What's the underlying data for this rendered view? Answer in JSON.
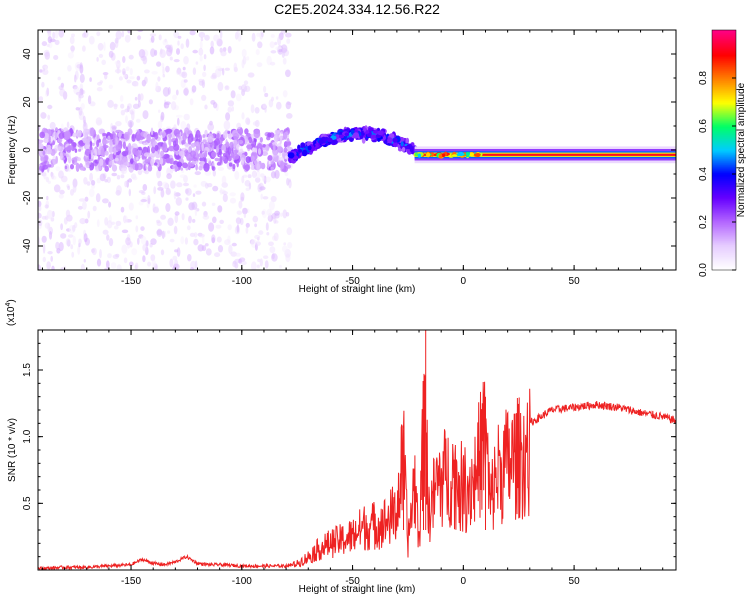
{
  "figure": {
    "title": "C2E5.2024.334.12.56.R22"
  },
  "chart_data": [
    {
      "type": "heatmap",
      "xlabel": "Height of straight line (km)",
      "ylabel": "Frequency (Hz)",
      "xlim": [
        -192,
        96
      ],
      "ylim": [
        -50,
        50
      ],
      "xticks": [
        -150,
        -100,
        -50,
        0,
        50
      ],
      "yticks": [
        -40,
        -20,
        0,
        20,
        40
      ],
      "grid": false,
      "colorbar": {
        "label": "Normalized spectral amplitude",
        "range": [
          0,
          1
        ],
        "ticks": [
          0.0,
          0.2,
          0.4,
          0.6,
          0.8
        ],
        "colormap": [
          "#ffffff",
          "#e6ccff",
          "#b366ff",
          "#6600ff",
          "#0000ff",
          "#00ccff",
          "#00ff66",
          "#ffff00",
          "#ff8000",
          "#ff0000",
          "#ff0080"
        ]
      },
      "regions": [
        {
          "x": [
            -192,
            -78
          ],
          "pattern": "broadband scattered speckle",
          "core_freq_hz": [
            -8,
            8
          ],
          "core_amplitude": 0.15,
          "background_amplitude": 0.05
        },
        {
          "x": [
            -78,
            -22
          ],
          "pattern": "concentrated band",
          "center_freq_hz": [
            -3,
            7
          ],
          "peak_amplitude": 0.45
        },
        {
          "x": [
            -22,
            96
          ],
          "pattern": "narrow tone",
          "center_freq_hz": -2,
          "peak_amplitude": 1.0
        }
      ]
    },
    {
      "type": "line",
      "xlabel": "Height of straight line (km)",
      "ylabel": "SNR (10 * v/v)",
      "y_multiplier": "(x10^4)",
      "xlim": [
        -192,
        96
      ],
      "ylim": [
        0,
        1.8
      ],
      "xticks": [
        -150,
        -100,
        -50,
        0,
        50
      ],
      "yticks": [
        0.5,
        1.0,
        1.5
      ],
      "ytick_labels": [
        "0.5",
        "1.0",
        "1.5"
      ],
      "grid": false,
      "series": [
        {
          "color": "#ee2222",
          "x": [
            -192,
            -180,
            -170,
            -160,
            -150,
            -145,
            -140,
            -135,
            -130,
            -125,
            -120,
            -115,
            -110,
            -100,
            -90,
            -80,
            -75,
            -70,
            -65,
            -60,
            -55,
            -50,
            -45,
            -40,
            -35,
            -30,
            -27,
            -25,
            -22,
            -20,
            -18,
            -17,
            -16,
            -14,
            -12,
            -10,
            -5,
            0,
            5,
            10,
            12,
            15,
            20,
            25,
            30,
            40,
            50,
            60,
            70,
            80,
            90,
            96
          ],
          "y": [
            0.01,
            0.02,
            0.02,
            0.03,
            0.04,
            0.08,
            0.05,
            0.04,
            0.06,
            0.1,
            0.05,
            0.04,
            0.04,
            0.03,
            0.03,
            0.03,
            0.06,
            0.12,
            0.2,
            0.25,
            0.28,
            0.32,
            0.4,
            0.42,
            0.45,
            0.55,
            1.05,
            0.25,
            0.85,
            0.3,
            1.25,
            1.8,
            0.5,
            0.65,
            0.8,
            0.85,
            0.9,
            0.75,
            0.85,
            1.3,
            0.6,
            0.9,
            1.0,
            1.05,
            1.1,
            1.2,
            1.22,
            1.24,
            1.22,
            1.18,
            1.15,
            1.12
          ]
        }
      ]
    }
  ]
}
